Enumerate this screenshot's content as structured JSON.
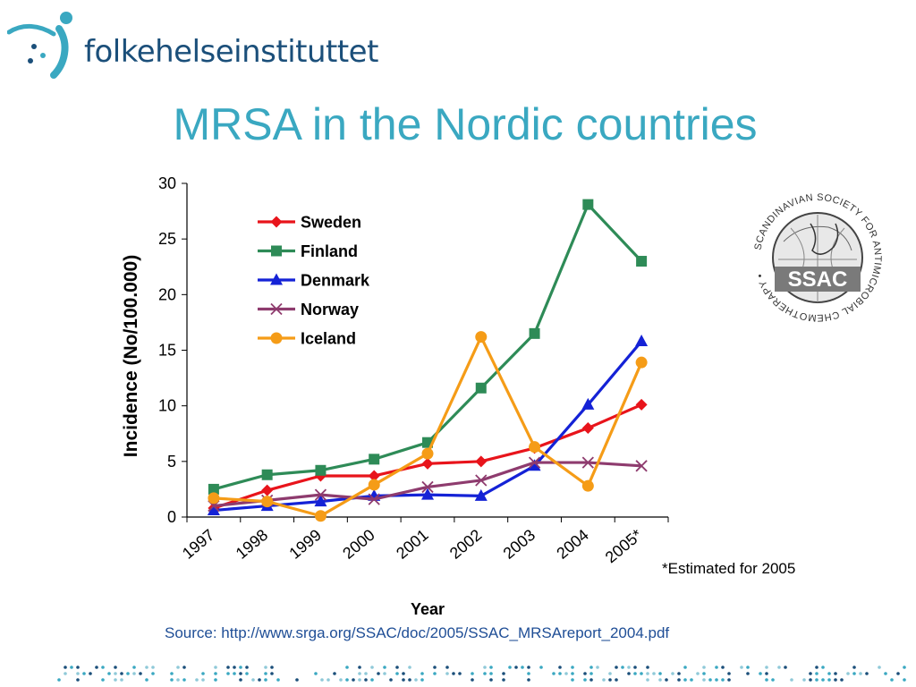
{
  "header": {
    "logo_text": "folkehelseinstituttet",
    "title": "MRSA in the Nordic countries"
  },
  "notes": {
    "estimate": "*Estimated for 2005",
    "source": "Source: http://www.srga.org/SSAC/doc/2005/SSAC_MRSAreport_2004.pdf"
  },
  "seal": {
    "ring_text": "SCANDINAVIAN SOCIETY FOR ANTIMICROBIAL CHEMOTHERAPY •",
    "label": "SSAC"
  },
  "colors": {
    "title": "#3aa8c1",
    "logo": "#1b4f7a",
    "source": "#1f4e96"
  },
  "chart_data": {
    "type": "line",
    "title": "",
    "xlabel": "Year",
    "ylabel": "Incidence (No/100.000)",
    "categories": [
      "1997",
      "1998",
      "1999",
      "2000",
      "2001",
      "2002",
      "2003",
      "2004",
      "2005*"
    ],
    "ylim": [
      0,
      30
    ],
    "yticks": [
      "0",
      "5",
      "10",
      "15",
      "20",
      "25",
      "30"
    ],
    "grid": false,
    "legend": "top-left inside plot",
    "series": [
      {
        "name": "Sweden",
        "color": "#e8141b",
        "marker": "diamond",
        "values": [
          0.8,
          2.4,
          3.7,
          3.7,
          4.8,
          5.0,
          6.2,
          8.0,
          10.1
        ]
      },
      {
        "name": "Finland",
        "color": "#2e8b57",
        "marker": "square",
        "values": [
          2.5,
          3.8,
          4.2,
          5.2,
          6.7,
          11.6,
          16.5,
          28.1,
          23.0
        ]
      },
      {
        "name": "Denmark",
        "color": "#1422d6",
        "marker": "triangle",
        "values": [
          0.6,
          1.0,
          1.4,
          1.9,
          2.0,
          1.9,
          4.6,
          10.1,
          15.8
        ]
      },
      {
        "name": "Norway",
        "color": "#8e3b6e",
        "marker": "x",
        "values": [
          1.0,
          1.5,
          2.0,
          1.6,
          2.7,
          3.3,
          4.9,
          4.9,
          4.6
        ]
      },
      {
        "name": "Iceland",
        "color": "#f59c17",
        "marker": "circle",
        "values": [
          1.7,
          1.4,
          0.1,
          2.9,
          5.7,
          16.2,
          6.3,
          2.8,
          13.9
        ]
      }
    ]
  }
}
